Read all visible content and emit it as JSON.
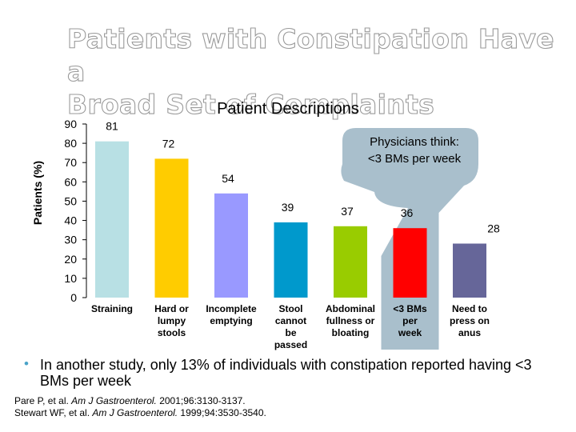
{
  "title": {
    "line1": "Patients with Constipation Have a",
    "line2": "Broad Set of Complaints"
  },
  "chart_data": {
    "type": "bar",
    "title": "Patient Descriptions",
    "ylabel": "Patients (%)",
    "xlabel": "",
    "ylim": [
      0,
      90
    ],
    "yticks": [
      0,
      10,
      20,
      30,
      40,
      50,
      60,
      70,
      80,
      90
    ],
    "grid": false,
    "categories": [
      "Straining",
      "Hard or lumpy stools",
      "Incomplete emptying",
      "Stool cannot be passed",
      "Abdominal fullness or bloating",
      "<3 BMs per week",
      "Need to press on anus"
    ],
    "category_lines": [
      [
        "Straining"
      ],
      [
        "Hard or",
        "lumpy",
        "stools"
      ],
      [
        "Incomplete",
        "emptying"
      ],
      [
        "Stool",
        "cannot",
        "be",
        "passed"
      ],
      [
        "Abdominal",
        "fullness or",
        "bloating"
      ],
      [
        "<3 BMs",
        "per",
        "week"
      ],
      [
        "Need to",
        "press on",
        "anus"
      ]
    ],
    "values": [
      81,
      72,
      54,
      39,
      37,
      36,
      28
    ],
    "data_labels": [
      "81",
      "72",
      "54",
      "39",
      "37",
      "36",
      "28"
    ],
    "colors": [
      "#b8e0e4",
      "#ffcc00",
      "#9999ff",
      "#0099cc",
      "#99cc00",
      "#ff0000",
      "#666699"
    ],
    "annotation": {
      "lines": [
        "Physicians think:",
        "<3 BMs per week"
      ],
      "color": "#a9bfcc",
      "highlights": "<3 BMs per week"
    }
  },
  "footnote": {
    "bullet": "•",
    "text": "In another study, only 13% of individuals with constipation reported having <3 BMs per week"
  },
  "references": [
    {
      "pre": "Pare P, et al. ",
      "journal": "Am J Gastroenterol.",
      "post": " 2001;96:3130-3137."
    },
    {
      "pre": "Stewart WF, et al. ",
      "journal": "Am J Gastroenterol.",
      "post": " 1999;94:3530-3540."
    }
  ]
}
